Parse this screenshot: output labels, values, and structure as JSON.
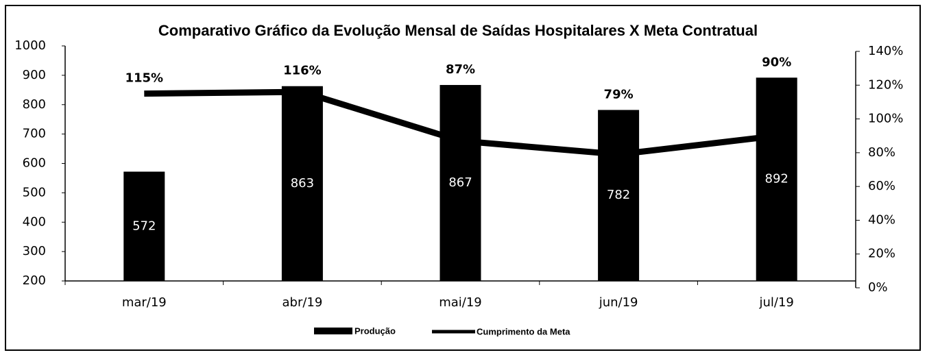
{
  "chart_data": {
    "type": "bar_line",
    "title": "Comparativo Gráfico da Evolução Mensal de Saídas Hospitalares X Meta Contratual",
    "categories": [
      "mar/19",
      "abr/19",
      "mai/19",
      "jun/19",
      "jul/19"
    ],
    "series": [
      {
        "name": "Produção",
        "color": "#000000",
        "type": "bar",
        "values": [
          572,
          863,
          867,
          782,
          892
        ]
      },
      {
        "name": "Cumprimento da Meta",
        "color": "#000000",
        "type": "line",
        "axis": "y2",
        "values": [
          115,
          116,
          87,
          79,
          90
        ],
        "value_labels": [
          "115%",
          "116%",
          "87%",
          "79%",
          "90%"
        ]
      }
    ],
    "ylim": [
      200,
      1000
    ],
    "yticks": [
      200,
      300,
      400,
      500,
      600,
      700,
      800,
      900,
      1000
    ],
    "y2lim": [
      0,
      140
    ],
    "y2ticks": [
      {
        "value": 0,
        "label": "0%"
      },
      {
        "value": 20,
        "label": "20%"
      },
      {
        "value": 40,
        "label": "40%"
      },
      {
        "value": 60,
        "label": "60%"
      },
      {
        "value": 80,
        "label": "80%"
      },
      {
        "value": 100,
        "label": "100%"
      },
      {
        "value": 120,
        "label": "120%"
      },
      {
        "value": 140,
        "label": "140%"
      }
    ],
    "grid": false
  }
}
